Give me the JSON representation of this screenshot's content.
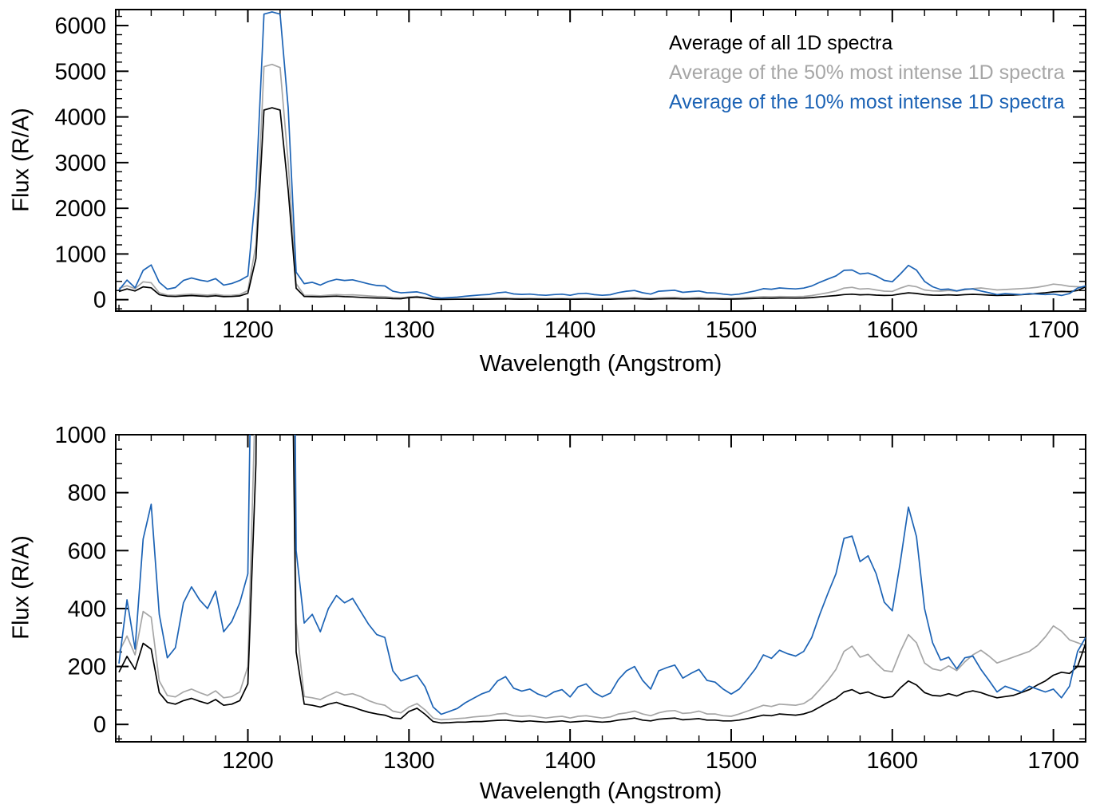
{
  "chart_data": {
    "type": "line",
    "title": "",
    "xlabel": "Wavelength (Angstrom)",
    "ylabel": "Flux (R/A)",
    "grid": false,
    "x": [
      1120,
      1125,
      1130,
      1135,
      1140,
      1145,
      1150,
      1155,
      1160,
      1165,
      1170,
      1175,
      1180,
      1185,
      1190,
      1195,
      1200,
      1205,
      1210,
      1215,
      1220,
      1225,
      1230,
      1235,
      1240,
      1245,
      1250,
      1255,
      1260,
      1265,
      1270,
      1275,
      1280,
      1285,
      1290,
      1295,
      1300,
      1305,
      1310,
      1315,
      1320,
      1325,
      1330,
      1335,
      1340,
      1345,
      1350,
      1355,
      1360,
      1365,
      1370,
      1375,
      1380,
      1385,
      1390,
      1395,
      1400,
      1405,
      1410,
      1415,
      1420,
      1425,
      1430,
      1435,
      1440,
      1445,
      1450,
      1455,
      1460,
      1465,
      1470,
      1475,
      1480,
      1485,
      1490,
      1495,
      1500,
      1505,
      1510,
      1515,
      1520,
      1525,
      1530,
      1535,
      1540,
      1545,
      1550,
      1555,
      1560,
      1565,
      1570,
      1575,
      1580,
      1585,
      1590,
      1595,
      1600,
      1605,
      1610,
      1615,
      1620,
      1625,
      1630,
      1635,
      1640,
      1645,
      1650,
      1655,
      1660,
      1665,
      1670,
      1675,
      1680,
      1685,
      1690,
      1695,
      1700,
      1705,
      1710,
      1715,
      1720
    ],
    "series": [
      {
        "name": "Average of all 1D spectra",
        "color": "#000000",
        "values": [
          180,
          235,
          190,
          280,
          260,
          110,
          76,
          70,
          82,
          90,
          80,
          72,
          86,
          66,
          70,
          82,
          140,
          900,
          4150,
          4200,
          4150,
          2400,
          250,
          70,
          66,
          60,
          70,
          76,
          66,
          60,
          50,
          42,
          36,
          32,
          22,
          20,
          45,
          56,
          35,
          10,
          5,
          6,
          8,
          8,
          10,
          10,
          12,
          14,
          15,
          12,
          10,
          12,
          10,
          8,
          10,
          12,
          8,
          10,
          12,
          10,
          8,
          10,
          15,
          18,
          22,
          15,
          12,
          18,
          20,
          22,
          16,
          18,
          20,
          15,
          15,
          12,
          12,
          15,
          20,
          26,
          32,
          30,
          36,
          34,
          32,
          36,
          45,
          60,
          76,
          90,
          112,
          120,
          106,
          112,
          100,
          92,
          96,
          126,
          150,
          136,
          110,
          100,
          98,
          106,
          98,
          110,
          116,
          110,
          100,
          92,
          96,
          100,
          110,
          120,
          136,
          150,
          170,
          180,
          176,
          200,
          280
        ]
      },
      {
        "name": "Average of the 50% most intense 1D spectra",
        "color": "#a6a6a6",
        "values": [
          250,
          305,
          240,
          390,
          370,
          150,
          100,
          95,
          112,
          122,
          110,
          100,
          116,
          92,
          96,
          112,
          200,
          1200,
          5100,
          5150,
          5080,
          3000,
          350,
          96,
          92,
          86,
          100,
          112,
          102,
          106,
          96,
          82,
          72,
          66,
          46,
          40,
          60,
          72,
          50,
          22,
          16,
          18,
          20,
          22,
          26,
          28,
          30,
          36,
          38,
          30,
          28,
          30,
          26,
          22,
          26,
          28,
          22,
          28,
          30,
          26,
          22,
          26,
          36,
          40,
          46,
          36,
          30,
          40,
          46,
          48,
          38,
          40,
          46,
          36,
          36,
          30,
          28,
          36,
          46,
          56,
          66,
          62,
          70,
          68,
          66,
          72,
          90,
          120,
          152,
          190,
          252,
          270,
          232,
          242,
          212,
          186,
          182,
          252,
          310,
          282,
          212,
          192,
          186,
          202,
          186,
          216,
          240,
          256,
          236,
          212,
          222,
          232,
          242,
          252,
          272,
          302,
          340,
          322,
          292,
          282,
          272
        ]
      },
      {
        "name": "Average of the 10% most intense 1D spectra",
        "color": "#1c63b5",
        "values": [
          210,
          430,
          260,
          640,
          760,
          380,
          230,
          265,
          420,
          475,
          430,
          400,
          460,
          320,
          355,
          420,
          520,
          2400,
          6250,
          6300,
          6250,
          4200,
          600,
          350,
          380,
          320,
          400,
          445,
          420,
          435,
          390,
          345,
          310,
          300,
          185,
          150,
          160,
          170,
          130,
          60,
          35,
          45,
          55,
          75,
          90,
          105,
          115,
          150,
          165,
          125,
          115,
          122,
          105,
          95,
          112,
          120,
          95,
          130,
          140,
          110,
          95,
          108,
          155,
          185,
          200,
          152,
          122,
          185,
          196,
          205,
          160,
          176,
          190,
          152,
          146,
          122,
          105,
          122,
          156,
          192,
          240,
          228,
          256,
          244,
          236,
          252,
          300,
          380,
          452,
          520,
          642,
          650,
          562,
          582,
          520,
          422,
          392,
          562,
          750,
          648,
          400,
          282,
          222,
          232,
          192,
          230,
          236,
          190,
          152,
          112,
          132,
          122,
          112,
          132,
          122,
          112,
          122,
          92,
          132,
          252,
          300
        ]
      }
    ],
    "panels": [
      {
        "ylabel": "Flux (R/A)",
        "xlabel": "Wavelength (Angstrom)",
        "xlim": [
          1118,
          1720
        ],
        "ylim": [
          -250,
          6350
        ],
        "xticks": [
          1200,
          1300,
          1400,
          1500,
          1600,
          1700
        ],
        "yticks": [
          0,
          1000,
          2000,
          3000,
          4000,
          5000,
          6000
        ],
        "x_minor": 20,
        "y_minor": 200,
        "legend": true
      },
      {
        "ylabel": "Flux (R/A)",
        "xlabel": "Wavelength (Angstrom)",
        "xlim": [
          1118,
          1720
        ],
        "ylim": [
          -60,
          1000
        ],
        "xticks": [
          1200,
          1300,
          1400,
          1500,
          1600,
          1700
        ],
        "yticks": [
          0,
          200,
          400,
          600,
          800,
          1000
        ],
        "x_minor": 20,
        "y_minor": 50,
        "legend": false
      }
    ],
    "legend": [
      {
        "label": "Average of all 1D spectra",
        "series": 0
      },
      {
        "label": "Average of the 50% most intense 1D spectra",
        "series": 1
      },
      {
        "label": "Average of the 10% most intense 1D spectra",
        "series": 2
      }
    ],
    "legend_position": "upper right"
  }
}
